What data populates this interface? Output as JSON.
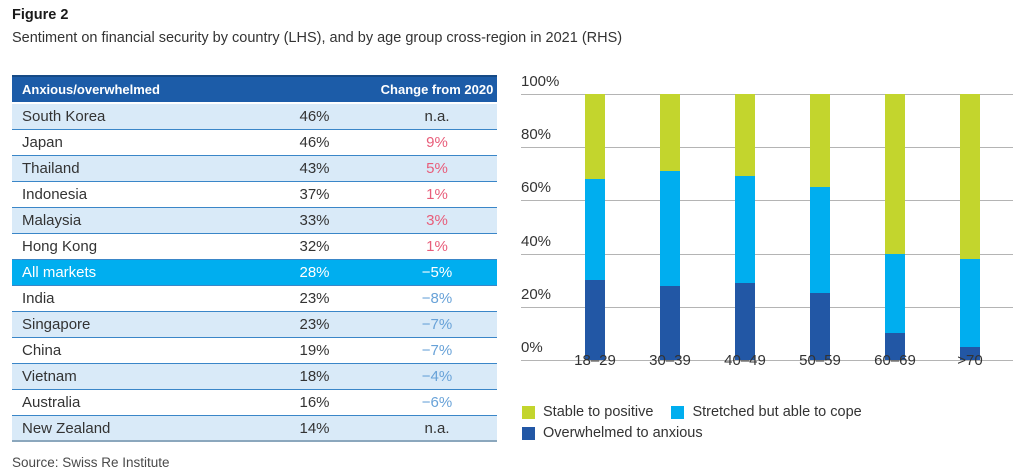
{
  "figure": {
    "title": "Figure 2",
    "subtitle": "Sentiment on financial security by country (LHS), and by age group cross-region in 2021 (RHS)",
    "source": "Source: Swiss Re Institute"
  },
  "table": {
    "header": {
      "label": "Anxious/overwhelmed",
      "value_label": "",
      "change_label": "Change from 2020"
    },
    "rows": [
      {
        "country": "South Korea",
        "value": "46%",
        "change": "n.a."
      },
      {
        "country": "Japan",
        "value": "46%",
        "change": "9%"
      },
      {
        "country": "Thailand",
        "value": "43%",
        "change": "5%"
      },
      {
        "country": "Indonesia",
        "value": "37%",
        "change": "1%"
      },
      {
        "country": "Malaysia",
        "value": "33%",
        "change": "3%"
      },
      {
        "country": "Hong Kong",
        "value": "32%",
        "change": "1%"
      },
      {
        "country": "All markets",
        "value": "28%",
        "change": "−5%",
        "highlight": true
      },
      {
        "country": "India",
        "value": "23%",
        "change": "−8%"
      },
      {
        "country": "Singapore",
        "value": "23%",
        "change": "−7%"
      },
      {
        "country": "China",
        "value": "19%",
        "change": "−7%"
      },
      {
        "country": "Vietnam",
        "value": "18%",
        "change": "−4%"
      },
      {
        "country": "Australia",
        "value": "16%",
        "change": "−6%"
      },
      {
        "country": "New Zealand",
        "value": "14%",
        "change": "n.a."
      }
    ]
  },
  "chart_data": {
    "type": "bar",
    "stacked": true,
    "categories": [
      "18–29",
      "30–39",
      "40–49",
      "50–59",
      "60–69",
      ">70"
    ],
    "series": [
      {
        "name": "Overwhelmed to anxious",
        "color": "#2257a5",
        "values": [
          30,
          28,
          29,
          25,
          10,
          5
        ]
      },
      {
        "name": "Stretched but able to cope",
        "color": "#00aeef",
        "values": [
          38,
          43,
          40,
          40,
          30,
          33
        ]
      },
      {
        "name": "Stable to positive",
        "color": "#c3d52d",
        "values": [
          32,
          29,
          31,
          35,
          60,
          62
        ]
      }
    ],
    "legend_order": [
      "Stable to positive",
      "Stretched but able to cope",
      "Overwhelmed to anxious"
    ],
    "legend_rows": [
      [
        "Stable to positive",
        "Stretched but able to cope"
      ],
      [
        "Overwhelmed to anxious"
      ]
    ],
    "ylim": [
      0,
      100
    ],
    "y_ticks": [
      "100%",
      "80%",
      "60%",
      "40%",
      "20%",
      "0%"
    ],
    "y_tick_values": [
      100,
      80,
      60,
      40,
      20,
      0
    ],
    "grid": true,
    "legend_position": "bottom"
  },
  "colors": {
    "table_header_bg": "#1c5ca8",
    "row_shaded_bg": "#d9eaf8",
    "highlight_row_bg": "#00aeef",
    "change_positive": "#e85d7a",
    "change_negative": "#68a2d8",
    "gridline": "#b4b4b4"
  }
}
